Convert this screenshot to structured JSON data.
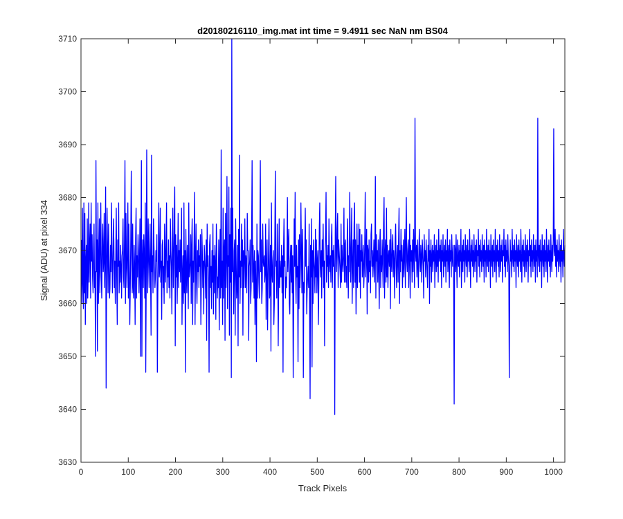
{
  "chart_data": {
    "type": "line",
    "title": "d20180216110_img.mat int time = 9.4911 sec  NaN nm BS04",
    "xlabel": "Track Pixels",
    "ylabel": "Signal (ADU) at pixel 334",
    "xlim": [
      0,
      1024
    ],
    "ylim": [
      3630,
      3710
    ],
    "xticks": [
      0,
      100,
      200,
      300,
      400,
      500,
      600,
      700,
      800,
      900,
      1000
    ],
    "yticks": [
      3630,
      3640,
      3650,
      3660,
      3670,
      3680,
      3690,
      3700,
      3710
    ],
    "grid": false,
    "series": [
      {
        "color": "#0000ff",
        "x_start": 1,
        "x_step": 1,
        "values": [
          3672,
          3660,
          3678,
          3664,
          3659,
          3679,
          3662,
          3677,
          3656,
          3668,
          3671,
          3660,
          3676,
          3661,
          3666,
          3679,
          3664,
          3671,
          3675,
          3661,
          3679,
          3668,
          3673,
          3665,
          3662,
          3670,
          3675,
          3663,
          3666,
          3650,
          3687,
          3666,
          3672,
          3651,
          3679,
          3660,
          3667,
          3676,
          3662,
          3671,
          3679,
          3665,
          3661,
          3672,
          3675,
          3666,
          3668,
          3677,
          3663,
          3669,
          3682,
          3644,
          3666,
          3678,
          3670,
          3662,
          3675,
          3668,
          3661,
          3663,
          3671,
          3666,
          3679,
          3670,
          3662,
          3667,
          3676,
          3672,
          3663,
          3668,
          3660,
          3669,
          3678,
          3665,
          3656,
          3672,
          3667,
          3679,
          3662,
          3668,
          3664,
          3671,
          3667,
          3661,
          3669,
          3670,
          3676,
          3665,
          3663,
          3672,
          3687,
          3660,
          3677,
          3668,
          3663,
          3670,
          3679,
          3661,
          3675,
          3666,
          3656,
          3663,
          3672,
          3685,
          3669,
          3662,
          3675,
          3663,
          3661,
          3671,
          3667,
          3656,
          3672,
          3678,
          3661,
          3669,
          3665,
          3673,
          3670,
          3662,
          3667,
          3676,
          3650,
          3671,
          3687,
          3650,
          3668,
          3672,
          3663,
          3673,
          3669,
          3661,
          3679,
          3647,
          3664,
          3689,
          3668,
          3662,
          3676,
          3670,
          3663,
          3668,
          3675,
          3665,
          3654,
          3688,
          3666,
          3669,
          3662,
          3676,
          3671,
          3667,
          3663,
          3665,
          3670,
          3668,
          3673,
          3647,
          3662,
          3669,
          3679,
          3665,
          3667,
          3678,
          3664,
          3668,
          3657,
          3671,
          3672,
          3663,
          3667,
          3660,
          3675,
          3670,
          3664,
          3671,
          3679,
          3662,
          3668,
          3665,
          3672,
          3663,
          3669,
          3661,
          3676,
          3670,
          3667,
          3658,
          3671,
          3678,
          3663,
          3667,
          3676,
          3682,
          3652,
          3673,
          3665,
          3671,
          3660,
          3668,
          3677,
          3663,
          3670,
          3666,
          3672,
          3664,
          3669,
          3678,
          3656,
          3665,
          3669,
          3660,
          3679,
          3662,
          3670,
          3647,
          3674,
          3666,
          3662,
          3671,
          3666,
          3659,
          3679,
          3665,
          3666,
          3668,
          3673,
          3660,
          3671,
          3676,
          3656,
          3668,
          3664,
          3672,
          3681,
          3656,
          3669,
          3675,
          3664,
          3660,
          3670,
          3666,
          3672,
          3663,
          3669,
          3667,
          3673,
          3656,
          3665,
          3674,
          3670,
          3663,
          3668,
          3658,
          3671,
          3669,
          3666,
          3661,
          3672,
          3653,
          3675,
          3667,
          3669,
          3664,
          3647,
          3671,
          3673,
          3663,
          3667,
          3659,
          3670,
          3664,
          3675,
          3658,
          3669,
          3662,
          3671,
          3667,
          3657,
          3675,
          3670,
          3661,
          3665,
          3663,
          3672,
          3655,
          3668,
          3674,
          3661,
          3689,
          3663,
          3668,
          3656,
          3678,
          3661,
          3670,
          3672,
          3653,
          3677,
          3663,
          3669,
          3684,
          3659,
          3669,
          3667,
          3682,
          3654,
          3673,
          3664,
          3678,
          3646,
          3710,
          3666,
          3678,
          3663,
          3658,
          3670,
          3672,
          3654,
          3676,
          3668,
          3661,
          3663,
          3671,
          3652,
          3674,
          3665,
          3688,
          3660,
          3668,
          3663,
          3675,
          3667,
          3672,
          3654,
          3670,
          3663,
          3669,
          3676,
          3663,
          3669,
          3668,
          3662,
          3677,
          3670,
          3670,
          3653,
          3667,
          3668,
          3672,
          3660,
          3663,
          3673,
          3687,
          3664,
          3671,
          3667,
          3661,
          3670,
          3656,
          3668,
          3663,
          3649,
          3675,
          3661,
          3670,
          3669,
          3664,
          3661,
          3672,
          3687,
          3666,
          3672,
          3660,
          3663,
          3675,
          3668,
          3667,
          3669,
          3664,
          3666,
          3675,
          3657,
          3667,
          3672,
          3655,
          3664,
          3670,
          3676,
          3661,
          3662,
          3671,
          3651,
          3679,
          3666,
          3664,
          3668,
          3670,
          3656,
          3660,
          3672,
          3685,
          3667,
          3668,
          3661,
          3675,
          3668,
          3652,
          3663,
          3676,
          3663,
          3668,
          3665,
          3665,
          3671,
          3662,
          3669,
          3647,
          3670,
          3676,
          3667,
          3668,
          3661,
          3665,
          3663,
          3667,
          3680,
          3666,
          3671,
          3674,
          3660,
          3658,
          3668,
          3671,
          3664,
          3671,
          3662,
          3669,
          3646,
          3660,
          3676,
          3667,
          3681,
          3666,
          3660,
          3671,
          3665,
          3667,
          3649,
          3672,
          3659,
          3673,
          3663,
          3667,
          3679,
          3670,
          3662,
          3674,
          3668,
          3646,
          3664,
          3662,
          3670,
          3678,
          3667,
          3672,
          3658,
          3663,
          3665,
          3667,
          3663,
          3675,
          3659,
          3642,
          3671,
          3665,
          3676,
          3648,
          3670,
          3660,
          3672,
          3668,
          3666,
          3662,
          3674,
          3665,
          3672,
          3662,
          3668,
          3670,
          3656,
          3663,
          3674,
          3679,
          3667,
          3665,
          3670,
          3661,
          3672,
          3667,
          3675,
          3663,
          3668,
          3652,
          3670,
          3673,
          3681,
          3664,
          3669,
          3667,
          3671,
          3663,
          3676,
          3668,
          3666,
          3669,
          3664,
          3672,
          3675,
          3663,
          3670,
          3667,
          3671,
          3666,
          3639,
          3673,
          3684,
          3669,
          3666,
          3674,
          3677,
          3663,
          3672,
          3670,
          3668,
          3666,
          3663,
          3675,
          3664,
          3671,
          3668,
          3666,
          3669,
          3678,
          3664,
          3671,
          3672,
          3664,
          3667,
          3663,
          3676,
          3672,
          3661,
          3669,
          3666,
          3681,
          3672,
          3664,
          3670,
          3678,
          3660,
          3667,
          3672,
          3663,
          3675,
          3679,
          3664,
          3672,
          3658,
          3666,
          3675,
          3663,
          3671,
          3667,
          3675,
          3664,
          3674,
          3661,
          3670,
          3668,
          3673,
          3665,
          3669,
          3671,
          3663,
          3666,
          3671,
          3681,
          3665,
          3669,
          3674,
          3658,
          3671,
          3670,
          3664,
          3672,
          3666,
          3668,
          3662,
          3673,
          3675,
          3667,
          3670,
          3665,
          3668,
          3672,
          3664,
          3669,
          3684,
          3661,
          3673,
          3668,
          3670,
          3664,
          3672,
          3667,
          3659,
          3671,
          3674,
          3663,
          3669,
          3666,
          3672,
          3668,
          3663,
          3675,
          3680,
          3661,
          3669,
          3672,
          3664,
          3678,
          3665,
          3671,
          3663,
          3669,
          3670,
          3667,
          3672,
          3659,
          3674,
          3668,
          3666,
          3671,
          3673,
          3665,
          3670,
          3668,
          3661,
          3672,
          3675,
          3667,
          3663,
          3669,
          3671,
          3664,
          3672,
          3678,
          3660,
          3670,
          3666,
          3674,
          3668,
          3671,
          3663,
          3667,
          3672,
          3665,
          3669,
          3674,
          3663,
          3671,
          3680,
          3668,
          3666,
          3670,
          3672,
          3663,
          3669,
          3675,
          3661,
          3671,
          3668,
          3670,
          3664,
          3672,
          3666,
          3674,
          3669,
          3663,
          3695,
          3670,
          3668,
          3671,
          3665,
          3672,
          3667,
          3663,
          3670,
          3674,
          3668,
          3666,
          3671,
          3669,
          3664,
          3672,
          3670,
          3667,
          3661,
          3673,
          3668,
          3670,
          3665,
          3672,
          3669,
          3666,
          3663,
          3671,
          3668,
          3674,
          3660,
          3670,
          3667,
          3672,
          3664,
          3669,
          3671,
          3666,
          3670,
          3668,
          3673,
          3663,
          3669,
          3671,
          3666,
          3672,
          3667,
          3670,
          3664,
          3674,
          3668,
          3669,
          3671,
          3666,
          3672,
          3663,
          3670,
          3668,
          3673,
          3665,
          3669,
          3671,
          3667,
          3672,
          3664,
          3670,
          3668,
          3674,
          3666,
          3669,
          3671,
          3663,
          3672,
          3668,
          3670,
          3665,
          3673,
          3669,
          3667,
          3671,
          3664,
          3641,
          3671,
          3670,
          3666,
          3673,
          3668,
          3663,
          3672,
          3669,
          3667,
          3671,
          3665,
          3670,
          3668,
          3674,
          3663,
          3669,
          3671,
          3666,
          3672,
          3668,
          3670,
          3664,
          3673,
          3669,
          3667,
          3671,
          3665,
          3672,
          3668,
          3670,
          3666,
          3674,
          3669,
          3663,
          3671,
          3668,
          3672,
          3667,
          3670,
          3665,
          3673,
          3669,
          3666,
          3671,
          3668,
          3672,
          3664,
          3670,
          3669,
          3674,
          3667,
          3671,
          3665,
          3672,
          3668,
          3670,
          3666,
          3673,
          3669,
          3667,
          3671,
          3664,
          3672,
          3668,
          3670,
          3665,
          3674,
          3669,
          3667,
          3671,
          3666,
          3672,
          3668,
          3670,
          3663,
          3673,
          3669,
          3667,
          3671,
          3665,
          3672,
          3668,
          3670,
          3666,
          3674,
          3669,
          3664,
          3671,
          3668,
          3672,
          3667,
          3670,
          3665,
          3673,
          3669,
          3666,
          3671,
          3668,
          3672,
          3664,
          3670,
          3669,
          3674,
          3667,
          3671,
          3665,
          3672,
          3668,
          3670,
          3666,
          3673,
          3669,
          3667,
          3646,
          3664,
          3672,
          3668,
          3670,
          3665,
          3674,
          3669,
          3667,
          3671,
          3666,
          3672,
          3668,
          3670,
          3663,
          3673,
          3669,
          3667,
          3671,
          3665,
          3672,
          3668,
          3670,
          3666,
          3674,
          3669,
          3664,
          3671,
          3668,
          3672,
          3667,
          3670,
          3665,
          3673,
          3669,
          3666,
          3671,
          3668,
          3672,
          3664,
          3670,
          3669,
          3674,
          3667,
          3671,
          3665,
          3672,
          3668,
          3670,
          3666,
          3673,
          3669,
          3667,
          3671,
          3664,
          3672,
          3668,
          3670,
          3665,
          3695,
          3669,
          3667,
          3671,
          3666,
          3672,
          3668,
          3670,
          3663,
          3673,
          3669,
          3667,
          3671,
          3665,
          3672,
          3668,
          3670,
          3666,
          3674,
          3669,
          3664,
          3671,
          3668,
          3672,
          3667,
          3670,
          3665,
          3673,
          3669,
          3666,
          3671,
          3668,
          3672,
          3693,
          3670,
          3669,
          3674,
          3667,
          3671,
          3665,
          3672,
          3668,
          3670,
          3666,
          3673,
          3669,
          3667,
          3671,
          3664,
          3672,
          3668,
          3670,
          3665,
          3674,
          3669,
          3667,
          3671
        ]
      }
    ]
  }
}
